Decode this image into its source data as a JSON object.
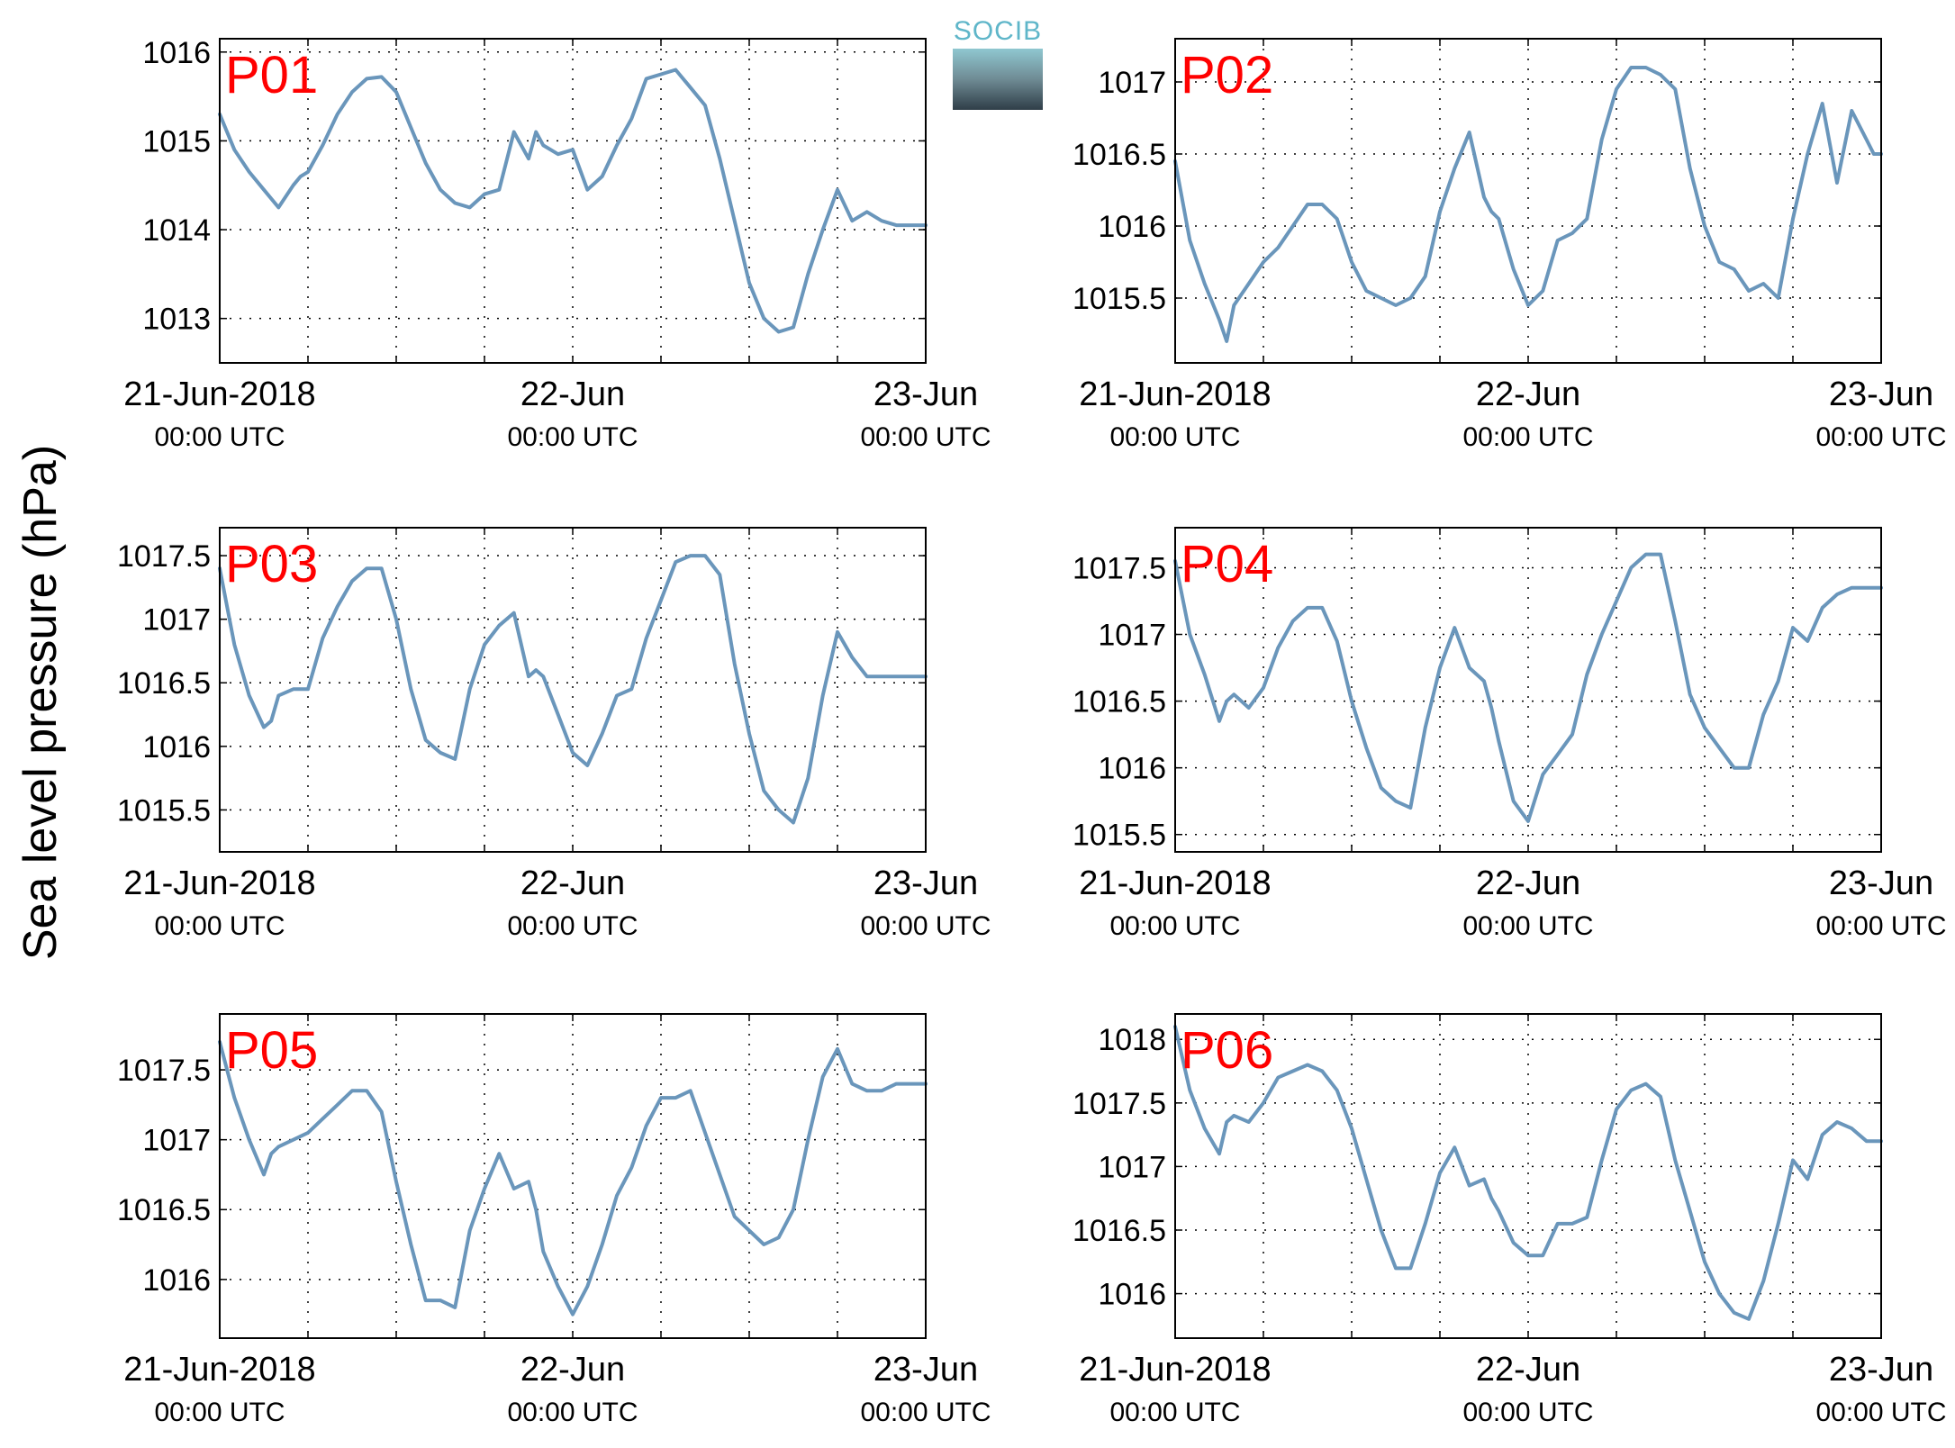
{
  "ylabel": "Sea level pressure (hPa)",
  "logo_text": "SOCIB",
  "chart_data": [
    {
      "type": "line",
      "title": "P01",
      "x_ticks": [
        {
          "top": "21-Jun-2018",
          "bottom": "00:00 UTC"
        },
        {
          "top": "22-Jun",
          "bottom": "00:00 UTC"
        },
        {
          "top": "23-Jun",
          "bottom": "00:00 UTC"
        }
      ],
      "ylim": [
        1012.5,
        1016.15
      ],
      "yticks": [
        1013,
        1014,
        1015,
        1016
      ],
      "ytick_labels": [
        "1013",
        "1014",
        "1015",
        "1016"
      ],
      "series": [
        {
          "x_hours": [
            0,
            1,
            2,
            3,
            4,
            5,
            5.5,
            6,
            7,
            8,
            9,
            10,
            11,
            12,
            13,
            14,
            15,
            16,
            17,
            18,
            19,
            20,
            21,
            21.5,
            22,
            23,
            24,
            25,
            26,
            27,
            28,
            29,
            30,
            31,
            32,
            33,
            34,
            35,
            36,
            37,
            38,
            39,
            40,
            41,
            42,
            43,
            44,
            45,
            46,
            47,
            48
          ],
          "values": [
            1015.3,
            1014.9,
            1014.65,
            1014.45,
            1014.25,
            1014.5,
            1014.6,
            1014.65,
            1014.95,
            1015.3,
            1015.55,
            1015.7,
            1015.72,
            1015.55,
            1015.15,
            1014.75,
            1014.45,
            1014.3,
            1014.25,
            1014.4,
            1014.45,
            1015.1,
            1014.8,
            1015.1,
            1014.95,
            1014.85,
            1014.9,
            1014.45,
            1014.6,
            1014.95,
            1015.25,
            1015.7,
            1015.75,
            1015.8,
            1015.6,
            1015.4,
            1014.8,
            1014.1,
            1013.4,
            1013.0,
            1012.85,
            1012.9,
            1013.5,
            1014.0,
            1014.45,
            1014.1,
            1014.2,
            1014.1,
            1014.05,
            1014.05,
            1014.05
          ]
        }
      ]
    },
    {
      "type": "line",
      "title": "P02",
      "x_ticks": [
        {
          "top": "21-Jun-2018",
          "bottom": "00:00 UTC"
        },
        {
          "top": "22-Jun",
          "bottom": "00:00 UTC"
        },
        {
          "top": "23-Jun",
          "bottom": "00:00 UTC"
        }
      ],
      "ylim": [
        1015.05,
        1017.3
      ],
      "yticks": [
        1015.5,
        1016,
        1016.5,
        1017
      ],
      "ytick_labels": [
        "1015.5",
        "1016",
        "1016.5",
        "1017"
      ],
      "series": [
        {
          "x_hours": [
            0,
            1,
            2,
            3,
            3.5,
            4,
            5,
            6,
            7,
            8,
            9,
            10,
            11,
            12,
            13,
            14,
            15,
            16,
            17,
            18,
            19,
            20,
            21,
            21.5,
            22,
            23,
            24,
            25,
            26,
            27,
            28,
            29,
            30,
            31,
            32,
            33,
            34,
            35,
            36,
            37,
            38,
            39,
            40,
            41,
            42,
            43,
            44,
            45,
            46,
            47,
            47.5,
            48
          ],
          "values": [
            1016.45,
            1015.9,
            1015.6,
            1015.35,
            1015.2,
            1015.45,
            1015.6,
            1015.75,
            1015.85,
            1016.0,
            1016.15,
            1016.15,
            1016.05,
            1015.75,
            1015.55,
            1015.5,
            1015.45,
            1015.5,
            1015.65,
            1016.1,
            1016.4,
            1016.65,
            1016.2,
            1016.1,
            1016.05,
            1015.7,
            1015.45,
            1015.55,
            1015.9,
            1015.95,
            1016.05,
            1016.6,
            1016.95,
            1017.1,
            1017.1,
            1017.05,
            1016.95,
            1016.4,
            1016.0,
            1015.75,
            1015.7,
            1015.55,
            1015.6,
            1015.5,
            1016.05,
            1016.5,
            1016.85,
            1016.3,
            1016.8,
            1016.6,
            1016.5,
            1016.5
          ]
        }
      ]
    },
    {
      "type": "line",
      "title": "P03",
      "x_ticks": [
        {
          "top": "21-Jun-2018",
          "bottom": "00:00 UTC"
        },
        {
          "top": "22-Jun",
          "bottom": "00:00 UTC"
        },
        {
          "top": "23-Jun",
          "bottom": "00:00 UTC"
        }
      ],
      "ylim": [
        1015.17,
        1017.72
      ],
      "yticks": [
        1015.5,
        1016,
        1016.5,
        1017,
        1017.5
      ],
      "ytick_labels": [
        "1015.5",
        "1016",
        "1016.5",
        "1017",
        "1017.5"
      ],
      "series": [
        {
          "x_hours": [
            0,
            1,
            2,
            3,
            3.5,
            4,
            5,
            6,
            7,
            8,
            9,
            10,
            11,
            12,
            13,
            14,
            15,
            16,
            17,
            18,
            19,
            20,
            21,
            21.5,
            22,
            23,
            24,
            25,
            26,
            27,
            28,
            29,
            30,
            31,
            32,
            33,
            34,
            35,
            36,
            37,
            38,
            39,
            40,
            41,
            42,
            43,
            44,
            45,
            46,
            47,
            48
          ],
          "values": [
            1017.4,
            1016.8,
            1016.4,
            1016.15,
            1016.2,
            1016.4,
            1016.45,
            1016.45,
            1016.85,
            1017.1,
            1017.3,
            1017.4,
            1017.4,
            1017.0,
            1016.45,
            1016.05,
            1015.95,
            1015.9,
            1016.45,
            1016.8,
            1016.95,
            1017.05,
            1016.55,
            1016.6,
            1016.55,
            1016.25,
            1015.95,
            1015.85,
            1016.1,
            1016.4,
            1016.45,
            1016.85,
            1017.15,
            1017.45,
            1017.5,
            1017.5,
            1017.35,
            1016.65,
            1016.1,
            1015.65,
            1015.5,
            1015.4,
            1015.75,
            1016.4,
            1016.9,
            1016.7,
            1016.55,
            1016.55,
            1016.55,
            1016.55,
            1016.55
          ]
        }
      ]
    },
    {
      "type": "line",
      "title": "P04",
      "x_ticks": [
        {
          "top": "21-Jun-2018",
          "bottom": "00:00 UTC"
        },
        {
          "top": "22-Jun",
          "bottom": "00:00 UTC"
        },
        {
          "top": "23-Jun",
          "bottom": "00:00 UTC"
        }
      ],
      "ylim": [
        1015.37,
        1017.8
      ],
      "yticks": [
        1015.5,
        1016,
        1016.5,
        1017,
        1017.5
      ],
      "ytick_labels": [
        "1015.5",
        "1016",
        "1016.5",
        "1017",
        "1017.5"
      ],
      "series": [
        {
          "x_hours": [
            0,
            1,
            2,
            3,
            3.5,
            4,
            5,
            6,
            7,
            8,
            9,
            10,
            11,
            12,
            13,
            14,
            15,
            16,
            17,
            18,
            19,
            20,
            21,
            21.5,
            22,
            23,
            24,
            25,
            26,
            27,
            28,
            29,
            30,
            31,
            32,
            33,
            34,
            35,
            36,
            37,
            38,
            39,
            40,
            41,
            42,
            43,
            44,
            45,
            46,
            47,
            48
          ],
          "values": [
            1017.55,
            1017.0,
            1016.7,
            1016.35,
            1016.5,
            1016.55,
            1016.45,
            1016.6,
            1016.9,
            1017.1,
            1017.2,
            1017.2,
            1016.95,
            1016.5,
            1016.15,
            1015.85,
            1015.75,
            1015.7,
            1016.3,
            1016.75,
            1017.05,
            1016.75,
            1016.65,
            1016.45,
            1016.2,
            1015.75,
            1015.6,
            1015.95,
            1016.1,
            1016.25,
            1016.7,
            1017.0,
            1017.25,
            1017.5,
            1017.6,
            1017.6,
            1017.1,
            1016.55,
            1016.3,
            1016.15,
            1016.0,
            1016.0,
            1016.4,
            1016.65,
            1017.05,
            1016.95,
            1017.2,
            1017.3,
            1017.35,
            1017.35,
            1017.35
          ]
        }
      ]
    },
    {
      "type": "line",
      "title": "P05",
      "x_ticks": [
        {
          "top": "21-Jun-2018",
          "bottom": "00:00 UTC"
        },
        {
          "top": "22-Jun",
          "bottom": "00:00 UTC"
        },
        {
          "top": "23-Jun",
          "bottom": "00:00 UTC"
        }
      ],
      "ylim": [
        1015.58,
        1017.9
      ],
      "yticks": [
        1016,
        1016.5,
        1017,
        1017.5
      ],
      "ytick_labels": [
        "1016",
        "1016.5",
        "1017",
        "1017.5"
      ],
      "series": [
        {
          "x_hours": [
            0,
            1,
            2,
            3,
            3.5,
            4,
            5,
            6,
            7,
            8,
            9,
            10,
            11,
            12,
            13,
            14,
            15,
            16,
            17,
            18,
            19,
            20,
            21,
            21.5,
            22,
            23,
            24,
            25,
            26,
            27,
            28,
            29,
            30,
            31,
            32,
            33,
            34,
            35,
            36,
            37,
            38,
            39,
            40,
            41,
            42,
            43,
            44,
            45,
            46,
            47,
            48
          ],
          "values": [
            1017.7,
            1017.3,
            1017.0,
            1016.75,
            1016.9,
            1016.95,
            1017.0,
            1017.05,
            1017.15,
            1017.25,
            1017.35,
            1017.35,
            1017.2,
            1016.7,
            1016.25,
            1015.85,
            1015.85,
            1015.8,
            1016.35,
            1016.65,
            1016.9,
            1016.65,
            1016.7,
            1016.5,
            1016.2,
            1015.95,
            1015.75,
            1015.95,
            1016.25,
            1016.6,
            1016.8,
            1017.1,
            1017.3,
            1017.3,
            1017.35,
            1017.05,
            1016.75,
            1016.45,
            1016.35,
            1016.25,
            1016.3,
            1016.5,
            1017.0,
            1017.45,
            1017.65,
            1017.4,
            1017.35,
            1017.35,
            1017.4,
            1017.4,
            1017.4
          ]
        }
      ]
    },
    {
      "type": "line",
      "title": "P06",
      "x_ticks": [
        {
          "top": "21-Jun-2018",
          "bottom": "00:00 UTC"
        },
        {
          "top": "22-Jun",
          "bottom": "00:00 UTC"
        },
        {
          "top": "23-Jun",
          "bottom": "00:00 UTC"
        }
      ],
      "ylim": [
        1015.65,
        1018.2
      ],
      "yticks": [
        1016,
        1016.5,
        1017,
        1017.5,
        1018
      ],
      "ytick_labels": [
        "1016",
        "1016.5",
        "1017",
        "1017.5",
        "1018"
      ],
      "series": [
        {
          "x_hours": [
            0,
            1,
            2,
            3,
            3.5,
            4,
            5,
            6,
            7,
            8,
            9,
            10,
            11,
            12,
            13,
            14,
            15,
            16,
            17,
            18,
            19,
            20,
            21,
            21.5,
            22,
            23,
            24,
            25,
            26,
            27,
            28,
            29,
            30,
            31,
            32,
            33,
            34,
            35,
            36,
            37,
            38,
            39,
            40,
            41,
            42,
            43,
            44,
            45,
            46,
            47,
            48
          ],
          "values": [
            1018.1,
            1017.6,
            1017.3,
            1017.1,
            1017.35,
            1017.4,
            1017.35,
            1017.5,
            1017.7,
            1017.75,
            1017.8,
            1017.75,
            1017.6,
            1017.3,
            1016.9,
            1016.5,
            1016.2,
            1016.2,
            1016.55,
            1016.95,
            1017.15,
            1016.85,
            1016.9,
            1016.75,
            1016.65,
            1016.4,
            1016.3,
            1016.3,
            1016.55,
            1016.55,
            1016.6,
            1017.05,
            1017.45,
            1017.6,
            1017.65,
            1017.55,
            1017.05,
            1016.65,
            1016.25,
            1016.0,
            1015.85,
            1015.8,
            1016.1,
            1016.55,
            1017.05,
            1016.9,
            1017.25,
            1017.35,
            1017.3,
            1017.2,
            1017.2
          ]
        }
      ]
    }
  ],
  "colors": {
    "line": "#6a96bb",
    "title": "#ff0000",
    "axis": "#000000",
    "grid": "#000000"
  }
}
